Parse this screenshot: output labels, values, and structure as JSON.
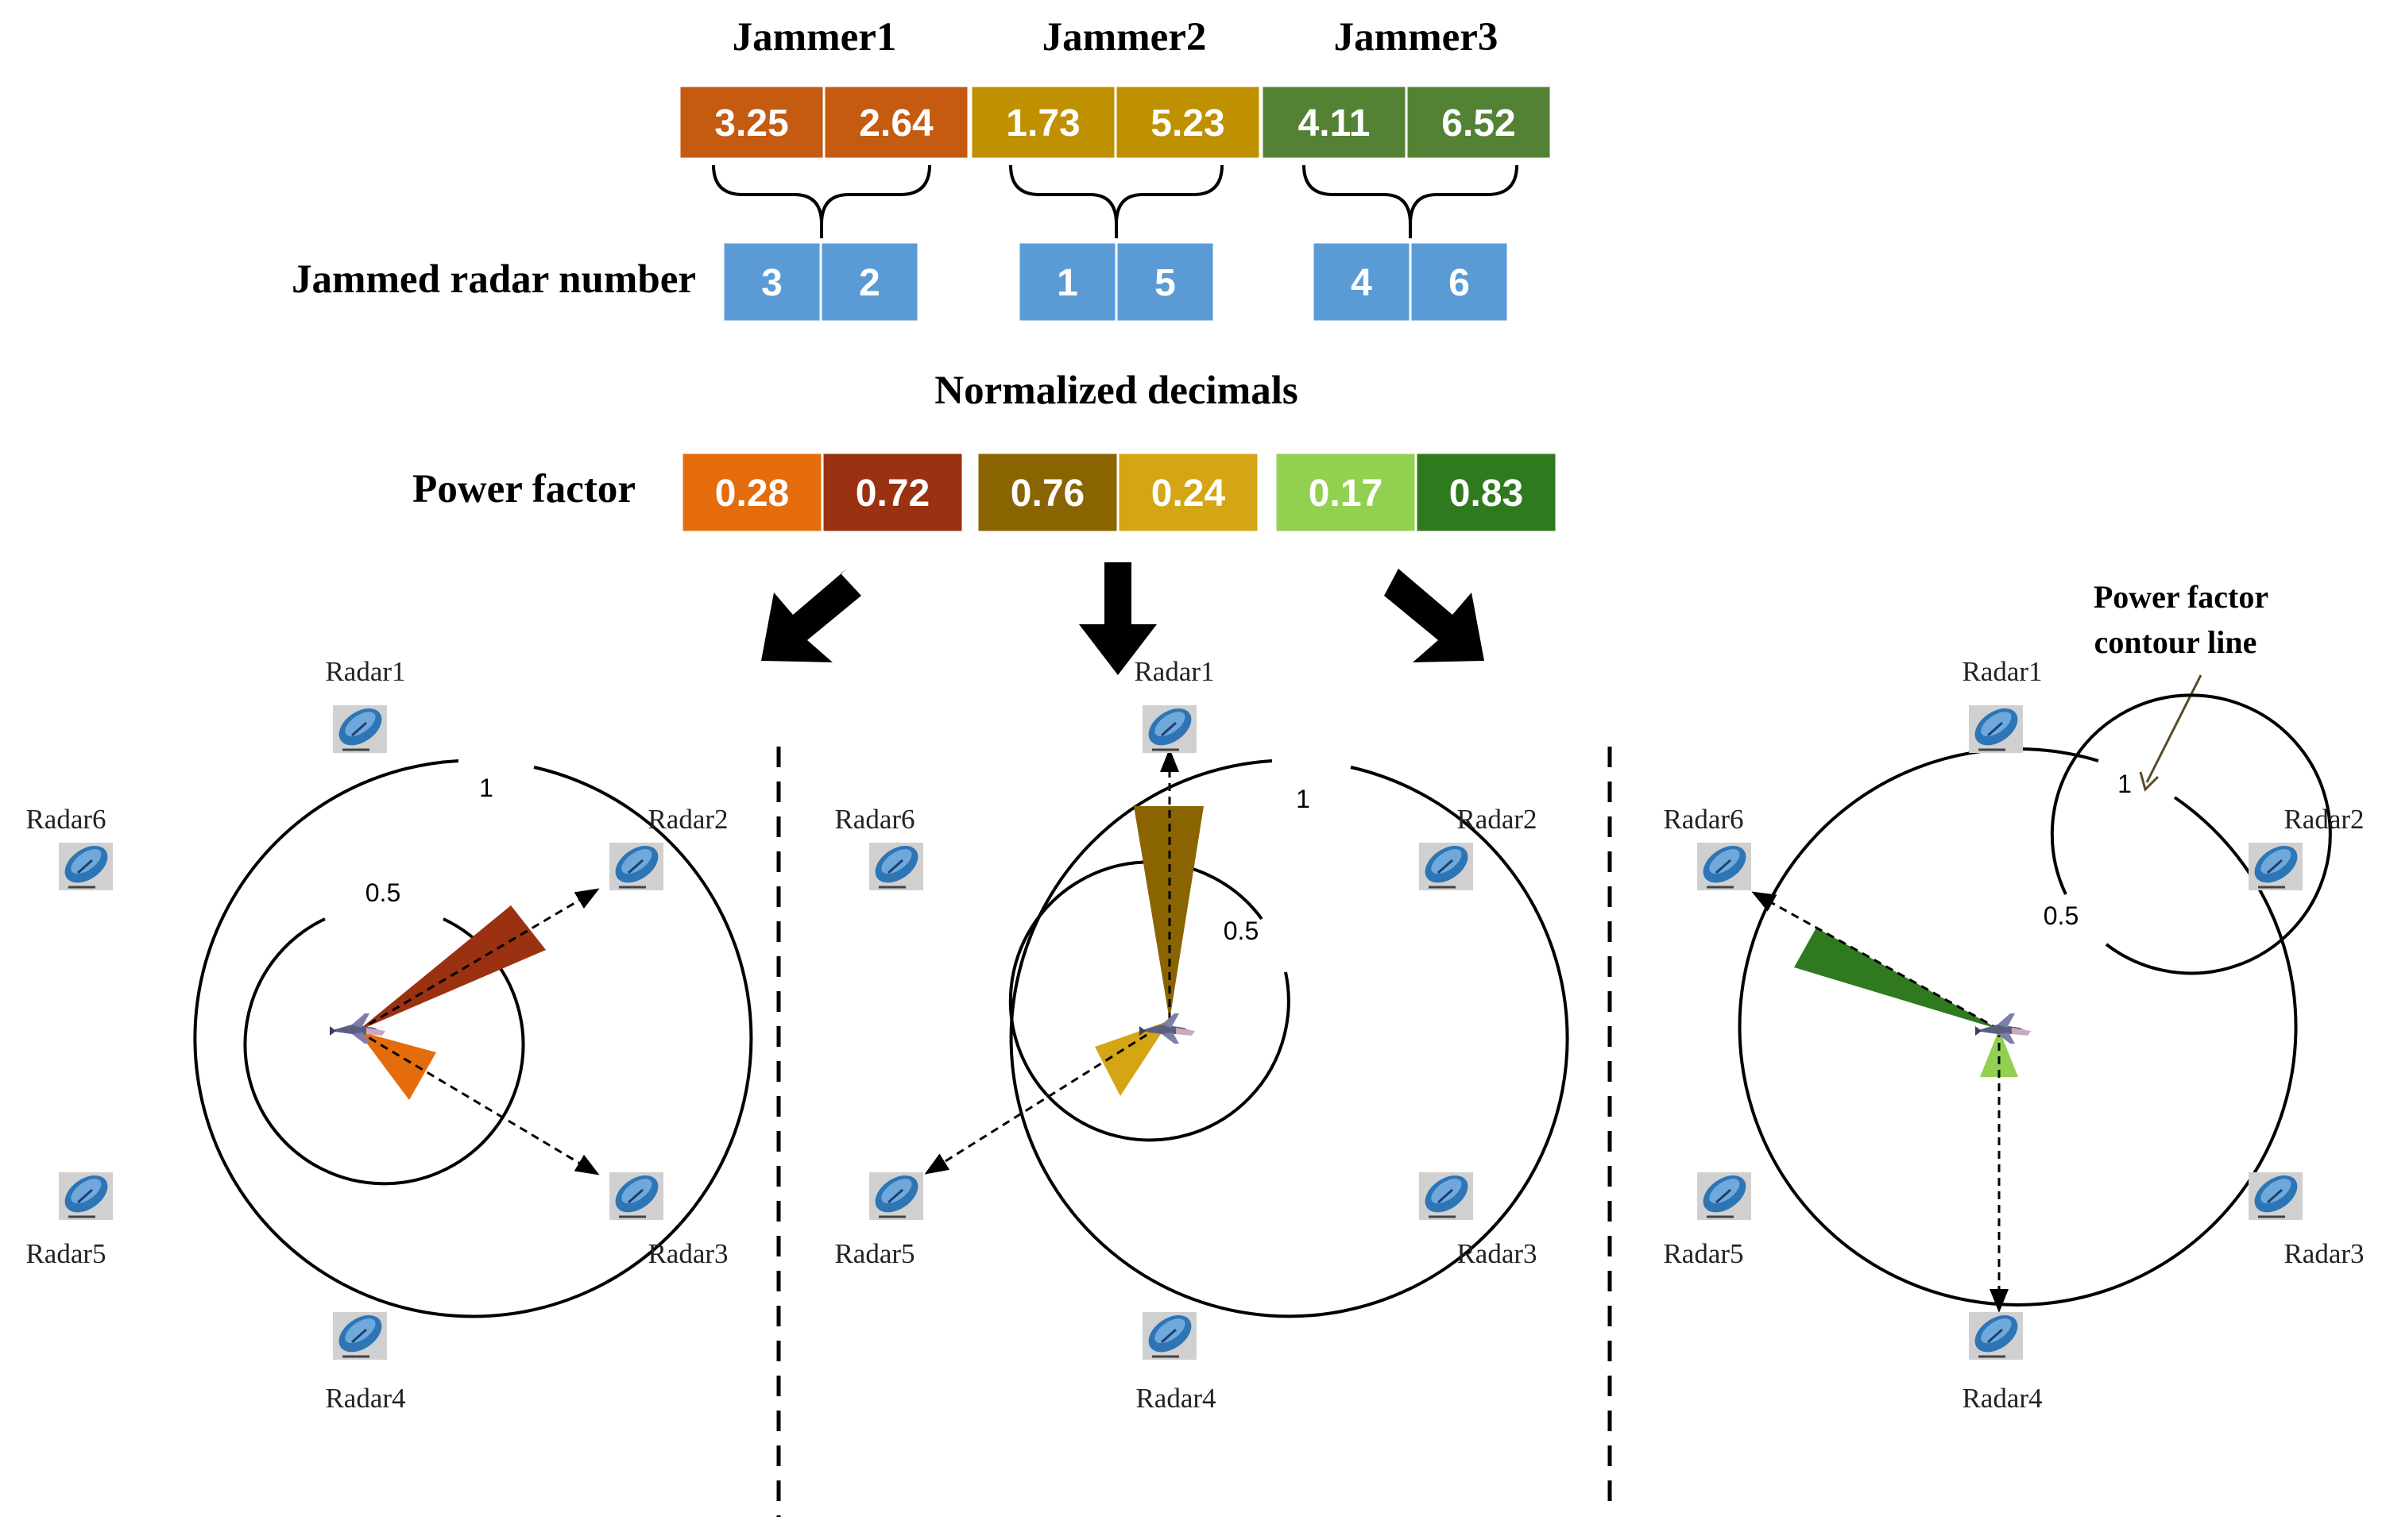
{
  "jammers": [
    {
      "name": "Jammer1",
      "genes": [
        "3.25",
        "2.64"
      ],
      "gene_colors": [
        "#c55a11",
        "#c55a11"
      ],
      "radars": [
        "3",
        "2"
      ],
      "factors": [
        "0.28",
        "0.72"
      ],
      "factor_colors": [
        "#e46c0a",
        "#9a3110"
      ]
    },
    {
      "name": "Jammer2",
      "genes": [
        "1.73",
        "5.23"
      ],
      "gene_colors": [
        "#bf9000",
        "#bf9000"
      ],
      "radars": [
        "1",
        "5"
      ],
      "factors": [
        "0.76",
        "0.24"
      ],
      "factor_colors": [
        "#8a6400",
        "#d4a514"
      ]
    },
    {
      "name": "Jammer3",
      "genes": [
        "4.11",
        "6.52"
      ],
      "gene_colors": [
        "#548235",
        "#548235"
      ],
      "radars": [
        "4",
        "6"
      ],
      "factors": [
        "0.17",
        "0.83"
      ],
      "factor_colors": [
        "#92d050",
        "#2f7a1f"
      ]
    }
  ],
  "labels": {
    "jammed_radar_number": "Jammed radar number",
    "normalized_decimals": "Normalized decimals",
    "power_factor": "Power factor",
    "contour_note_line1": "Power factor",
    "contour_note_line2": "contour line"
  },
  "radar_names": [
    "Radar1",
    "Radar2",
    "Radar3",
    "Radar4",
    "Radar5",
    "Radar6"
  ],
  "ring_labels": [
    "1",
    "0.5"
  ],
  "colors": {
    "radar_cell": "#5b9bd5",
    "text_white": "#ffffff"
  }
}
